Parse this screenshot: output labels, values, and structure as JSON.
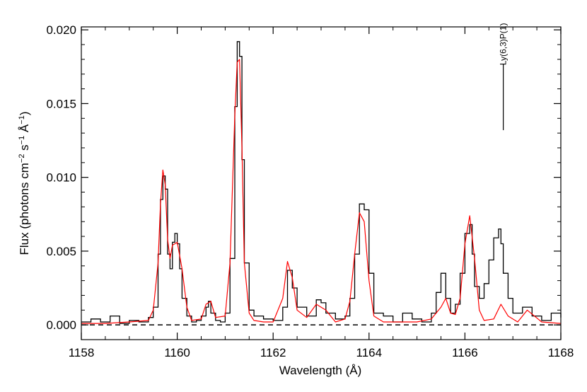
{
  "chart_data": {
    "type": "line",
    "xlabel": "Wavelength (Å)",
    "ylabel": "Flux (photons cm−2 s−1 Å−1)",
    "ylabel_parts": {
      "pre": "Flux (photons cm",
      "sup1": "−2",
      "mid1": " s",
      "sup2": "−1",
      "mid2": " Å",
      "sup3": "−1",
      "post": ")"
    },
    "xlim": [
      1158,
      1168
    ],
    "ylim": [
      -0.001,
      0.0202
    ],
    "x_ticks": [
      1158,
      1160,
      1162,
      1164,
      1166,
      1168
    ],
    "x_tick_labels": [
      "1158",
      "1160",
      "1162",
      "1164",
      "1166",
      "1168"
    ],
    "y_ticks": [
      0.0,
      0.005,
      0.01,
      0.015,
      0.02
    ],
    "y_tick_labels": [
      "0.000",
      "0.005",
      "0.010",
      "0.015",
      "0.020"
    ],
    "grid": false,
    "zero_line": {
      "y": 0.0,
      "style": "dashed",
      "color": "#000000"
    },
    "annotation": {
      "text": "Ly(6,3)P(1)",
      "x": 1166.8,
      "y_from": 0.0132,
      "y_to": 0.0177
    },
    "series": [
      {
        "style": "histogram",
        "color": "#000000",
        "x": [
          1158.0,
          1158.2,
          1158.4,
          1158.6,
          1158.8,
          1159.0,
          1159.2,
          1159.4,
          1159.5,
          1159.6,
          1159.65,
          1159.7,
          1159.75,
          1159.8,
          1159.85,
          1159.9,
          1159.95,
          1160.0,
          1160.05,
          1160.1,
          1160.2,
          1160.3,
          1160.4,
          1160.5,
          1160.6,
          1160.65,
          1160.7,
          1160.8,
          1160.9,
          1161.0,
          1161.1,
          1161.2,
          1161.25,
          1161.3,
          1161.35,
          1161.4,
          1161.5,
          1161.6,
          1161.8,
          1162.0,
          1162.2,
          1162.3,
          1162.4,
          1162.5,
          1162.7,
          1162.9,
          1163.0,
          1163.1,
          1163.3,
          1163.5,
          1163.6,
          1163.7,
          1163.8,
          1163.9,
          1164.0,
          1164.1,
          1164.3,
          1164.5,
          1164.7,
          1164.9,
          1165.1,
          1165.3,
          1165.4,
          1165.5,
          1165.6,
          1165.7,
          1165.8,
          1165.9,
          1166.0,
          1166.1,
          1166.15,
          1166.2,
          1166.3,
          1166.4,
          1166.5,
          1166.6,
          1166.7,
          1166.75,
          1166.8,
          1166.9,
          1167.0,
          1167.2,
          1167.4,
          1167.6,
          1167.8,
          1168.0
        ],
        "y": [
          0.0002,
          0.0004,
          0.0002,
          0.0006,
          0.0001,
          0.0003,
          0.0002,
          0.0005,
          0.0012,
          0.0048,
          0.0085,
          0.0101,
          0.0092,
          0.0048,
          0.0038,
          0.0056,
          0.0062,
          0.0055,
          0.0038,
          0.0018,
          0.0006,
          0.0002,
          0.0003,
          0.0006,
          0.0012,
          0.0016,
          0.0008,
          0.0003,
          0.0002,
          0.0008,
          0.0045,
          0.0148,
          0.0192,
          0.0182,
          0.0112,
          0.0042,
          0.001,
          0.0006,
          0.0004,
          0.0003,
          0.0012,
          0.0037,
          0.0025,
          0.0012,
          0.0006,
          0.0017,
          0.0015,
          0.0008,
          0.0004,
          0.0006,
          0.0018,
          0.0048,
          0.0082,
          0.0078,
          0.0035,
          0.0008,
          0.0006,
          0.0002,
          0.0008,
          0.0004,
          0.0002,
          0.0008,
          0.0022,
          0.0035,
          0.0018,
          0.0008,
          0.0014,
          0.0035,
          0.0062,
          0.0068,
          0.0048,
          0.0026,
          0.0018,
          0.0028,
          0.0044,
          0.0059,
          0.0065,
          0.0055,
          0.0035,
          0.0018,
          0.0008,
          0.0012,
          0.0006,
          0.0003,
          0.0008,
          0.0005
        ]
      },
      {
        "style": "smooth",
        "color": "#ff0000",
        "x": [
          1158.0,
          1158.5,
          1159.0,
          1159.4,
          1159.5,
          1159.6,
          1159.65,
          1159.7,
          1159.75,
          1159.8,
          1159.85,
          1159.9,
          1160.0,
          1160.1,
          1160.2,
          1160.3,
          1160.5,
          1160.6,
          1160.7,
          1160.8,
          1161.0,
          1161.1,
          1161.2,
          1161.25,
          1161.3,
          1161.35,
          1161.4,
          1161.5,
          1161.6,
          1161.8,
          1162.0,
          1162.2,
          1162.3,
          1162.4,
          1162.5,
          1162.7,
          1162.9,
          1163.1,
          1163.3,
          1163.5,
          1163.6,
          1163.7,
          1163.8,
          1163.9,
          1164.0,
          1164.1,
          1164.3,
          1164.6,
          1165.0,
          1165.3,
          1165.5,
          1165.6,
          1165.7,
          1165.8,
          1165.9,
          1166.0,
          1166.1,
          1166.2,
          1166.3,
          1166.4,
          1166.6,
          1166.75,
          1166.9,
          1167.1,
          1167.3,
          1167.6,
          1168.0
        ],
        "y": [
          0.0001,
          0.0001,
          0.0002,
          0.0003,
          0.001,
          0.0042,
          0.0082,
          0.0105,
          0.0095,
          0.0058,
          0.0045,
          0.0054,
          0.0056,
          0.0038,
          0.0012,
          0.0003,
          0.0004,
          0.0014,
          0.0016,
          0.0005,
          0.0006,
          0.0042,
          0.0142,
          0.0178,
          0.018,
          0.012,
          0.0042,
          0.0008,
          0.0003,
          0.0002,
          0.0002,
          0.0018,
          0.0043,
          0.0032,
          0.001,
          0.0005,
          0.0014,
          0.001,
          0.0002,
          0.0004,
          0.0016,
          0.0048,
          0.0076,
          0.007,
          0.003,
          0.0006,
          0.0002,
          0.0002,
          0.0002,
          0.0004,
          0.0012,
          0.0018,
          0.0008,
          0.0007,
          0.0018,
          0.0055,
          0.0074,
          0.0045,
          0.001,
          0.0003,
          0.0004,
          0.0014,
          0.0006,
          0.0002,
          0.001,
          0.0002,
          0.0001
        ]
      }
    ]
  }
}
